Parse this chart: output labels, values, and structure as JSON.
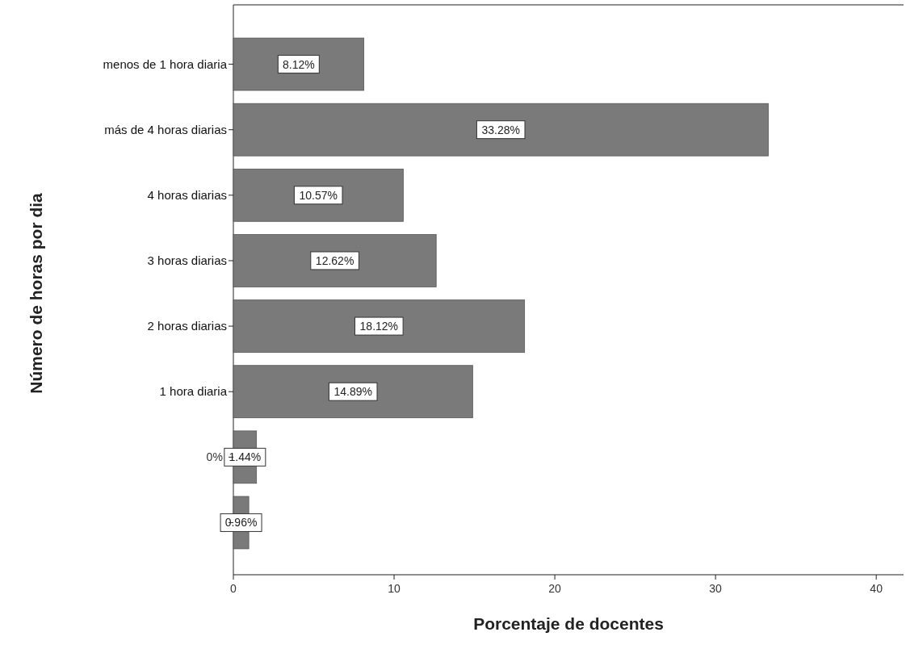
{
  "chart_data": {
    "type": "bar",
    "orientation": "horizontal",
    "xlabel": "Porcentaje de docentes",
    "ylabel": "Número de horas por dia",
    "categories": [
      "menos de 1 hora diaria",
      "más de 4 horas diarias",
      "4 horas diarias",
      "3 horas diarias",
      "2 horas diarias",
      "1 hora diaria",
      null,
      null
    ],
    "values": [
      8.12,
      33.28,
      10.57,
      12.62,
      18.12,
      14.89,
      1.44,
      0.96
    ],
    "value_labels": [
      "8.12%",
      "33.28%",
      "10.57%",
      "12.62%",
      "18.12%",
      "14.89%",
      "1.44%",
      "0.96%"
    ],
    "color": "#7a7a7a",
    "xlim": [
      0,
      41.7
    ],
    "xticks": [
      0,
      10,
      20,
      30,
      40
    ],
    "annotations": [
      "0%"
    ]
  }
}
